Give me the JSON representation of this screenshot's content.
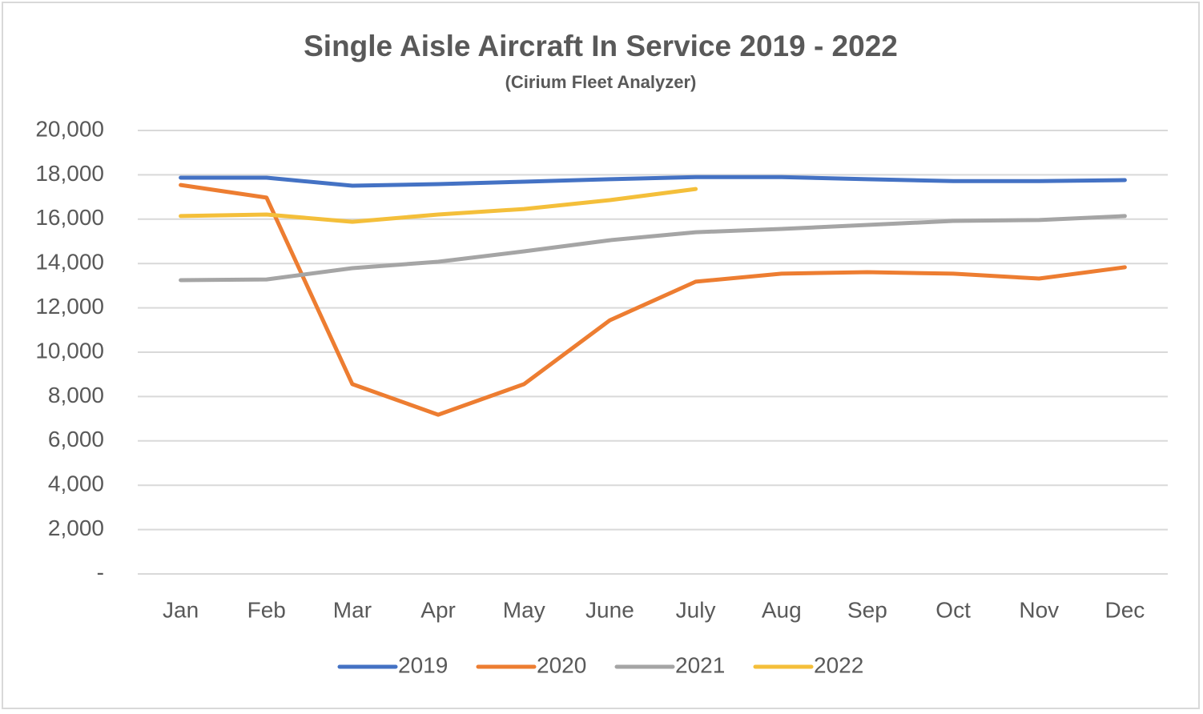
{
  "chart_data": {
    "type": "line",
    "title": "Single Aisle Aircraft In Service 2019 - 2022",
    "subtitle": "(Cirium Fleet Analyzer)",
    "categories": [
      "Jan",
      "Feb",
      "Mar",
      "Apr",
      "May",
      "June",
      "July",
      "Aug",
      "Sep",
      "Oct",
      "Nov",
      "Dec"
    ],
    "series": [
      {
        "name": "2019",
        "color": "#4472c4",
        "values": [
          17870,
          17870,
          17510,
          17580,
          17690,
          17800,
          17900,
          17900,
          17800,
          17720,
          17720,
          17760
        ]
      },
      {
        "name": "2020",
        "color": "#ed7d31",
        "values": [
          17540,
          16970,
          8560,
          7180,
          8560,
          11440,
          13180,
          13540,
          13610,
          13540,
          13320,
          13830
        ]
      },
      {
        "name": "2021",
        "color": "#a5a5a5",
        "values": [
          13250,
          13280,
          13790,
          14080,
          14550,
          15050,
          15410,
          15560,
          15740,
          15920,
          15960,
          16140
        ]
      },
      {
        "name": "2022",
        "color": "#f4bf3a",
        "values": [
          16140,
          16210,
          15880,
          16210,
          16460,
          16860,
          17360,
          null,
          null,
          null,
          null,
          null
        ]
      }
    ],
    "ylim": [
      0,
      20000
    ],
    "yticks": [
      {
        "value": 0,
        "label": "-"
      },
      {
        "value": 2000,
        "label": "2,000"
      },
      {
        "value": 4000,
        "label": "4,000"
      },
      {
        "value": 6000,
        "label": "6,000"
      },
      {
        "value": 8000,
        "label": "8,000"
      },
      {
        "value": 10000,
        "label": "10,000"
      },
      {
        "value": 12000,
        "label": "12,000"
      },
      {
        "value": 14000,
        "label": "14,000"
      },
      {
        "value": 16000,
        "label": "16,000"
      },
      {
        "value": 18000,
        "label": "18,000"
      },
      {
        "value": 20000,
        "label": "20,000"
      }
    ],
    "grid": true,
    "legend": "bottom"
  }
}
